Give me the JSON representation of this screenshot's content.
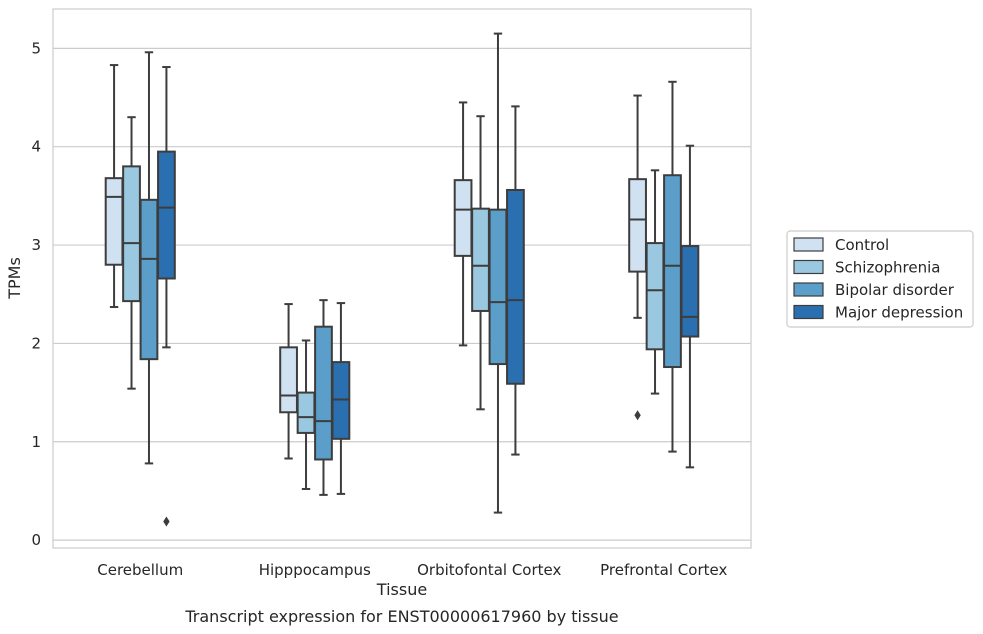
{
  "chart_data": {
    "type": "box",
    "title": "",
    "caption": "Transcript expression for ENST00000617960 by tissue",
    "xlabel": "Tissue",
    "ylabel": "TPMs",
    "ylim": [
      -0.08,
      5.4
    ],
    "yticks": [
      "0",
      "1",
      "2",
      "3",
      "4",
      "5"
    ],
    "grid": "horizontal",
    "legend_position": "right",
    "categories": [
      "Cerebellum",
      "Hipppocampus",
      "Orbitofontal Cortex",
      "Prefrontal Cortex"
    ],
    "series": [
      {
        "name": "Control",
        "color": "#d0e1f2",
        "boxes": [
          {
            "whislo": 2.37,
            "q1": 2.8,
            "med": 3.49,
            "q3": 3.68,
            "whishi": 4.83,
            "fliers": []
          },
          {
            "whislo": 0.83,
            "q1": 1.3,
            "med": 1.47,
            "q3": 1.96,
            "whishi": 2.4,
            "fliers": []
          },
          {
            "whislo": 1.98,
            "q1": 2.89,
            "med": 3.36,
            "q3": 3.66,
            "whishi": 4.45,
            "fliers": []
          },
          {
            "whislo": 2.26,
            "q1": 2.73,
            "med": 3.26,
            "q3": 3.67,
            "whishi": 4.52,
            "fliers": [
              1.27
            ]
          }
        ]
      },
      {
        "name": "Schizophrenia",
        "color": "#9ac8e0",
        "boxes": [
          {
            "whislo": 1.54,
            "q1": 2.43,
            "med": 3.02,
            "q3": 3.8,
            "whishi": 4.3,
            "fliers": []
          },
          {
            "whislo": 0.52,
            "q1": 1.09,
            "med": 1.25,
            "q3": 1.5,
            "whishi": 2.03,
            "fliers": []
          },
          {
            "whislo": 1.33,
            "q1": 2.33,
            "med": 2.79,
            "q3": 3.37,
            "whishi": 4.31,
            "fliers": []
          },
          {
            "whislo": 1.49,
            "q1": 1.94,
            "med": 2.54,
            "q3": 3.02,
            "whishi": 3.76,
            "fliers": []
          }
        ]
      },
      {
        "name": "Bipolar disorder",
        "color": "#5a9ec9",
        "boxes": [
          {
            "whislo": 0.78,
            "q1": 1.84,
            "med": 2.86,
            "q3": 3.46,
            "whishi": 4.96,
            "fliers": []
          },
          {
            "whislo": 0.46,
            "q1": 0.82,
            "med": 1.21,
            "q3": 2.17,
            "whishi": 2.44,
            "fliers": []
          },
          {
            "whislo": 0.28,
            "q1": 1.79,
            "med": 2.42,
            "q3": 3.36,
            "whishi": 5.15,
            "fliers": []
          },
          {
            "whislo": 0.9,
            "q1": 1.76,
            "med": 2.79,
            "q3": 3.71,
            "whishi": 4.66,
            "fliers": []
          }
        ]
      },
      {
        "name": "Major depression",
        "color": "#2a6fb0",
        "boxes": [
          {
            "whislo": 1.96,
            "q1": 2.66,
            "med": 3.38,
            "q3": 3.95,
            "whishi": 4.81,
            "fliers": [
              0.19
            ]
          },
          {
            "whislo": 0.47,
            "q1": 1.03,
            "med": 1.43,
            "q3": 1.81,
            "whishi": 2.41,
            "fliers": []
          },
          {
            "whislo": 0.87,
            "q1": 1.59,
            "med": 2.44,
            "q3": 3.56,
            "whishi": 4.41,
            "fliers": []
          },
          {
            "whislo": 0.74,
            "q1": 2.07,
            "med": 2.27,
            "q3": 2.99,
            "whishi": 4.01,
            "fliers": []
          }
        ]
      }
    ]
  }
}
